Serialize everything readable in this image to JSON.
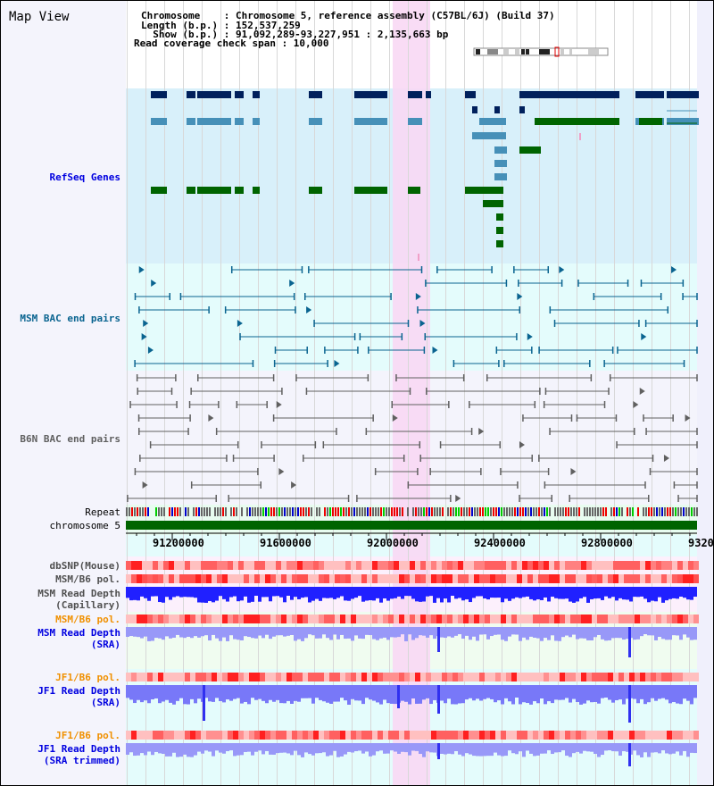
{
  "header": {
    "title": "Map View",
    "info_lines": [
      "Chromosome    : Chromosome 5, reference assembly (C57BL/6J) (Build 37)",
      "Length (b.p.) : 152,537,259",
      "  Show (b.p.) : 91,092,289-93,227,951 : 2,135,663 bp",
      "Read coverage check span : 10,000"
    ]
  },
  "tracks": {
    "refseq": "RefSeq Genes",
    "msm_bac": "MSM BAC end pairs",
    "b6n_bac": "B6N BAC end pairs",
    "repeat": "Repeat",
    "chromosome": "chromosome 5",
    "dbsnp": "dbSNP(Mouse)",
    "msm_b6_pol_1": "MSM/B6 pol.",
    "msm_depth_cap_1": "MSM Read Depth",
    "msm_depth_cap_2": "(Capillary)",
    "msm_b6_pol_2": "MSM/B6 pol.",
    "msm_depth_sra_1": "MSM Read Depth",
    "msm_depth_sra_2": "(SRA)",
    "jf1_b6_pol_1": "JF1/B6 pol.",
    "jf1_depth_sra_1": "JF1 Read Depth",
    "jf1_depth_sra_2": "(SRA)",
    "jf1_b6_pol_2": "JF1/B6 pol.",
    "jf1_depth_trim_1": "JF1 Read Depth",
    "jf1_depth_trim_2": "(SRA trimmed)"
  },
  "axis": {
    "ticks": [
      "91200000",
      "91600000",
      "92000000",
      "92400000",
      "92800000",
      "9320"
    ]
  },
  "colors": {
    "gene_dark": "#00205c",
    "gene_mid": "#4690b8",
    "gene_green": "#006400",
    "msm_bac": "#0a6490",
    "b6n_bac": "#606060",
    "highlight": "#f8d8f4",
    "label_blue": "#0000e0",
    "label_orange": "#f09000",
    "chromosome": "#006400"
  }
}
